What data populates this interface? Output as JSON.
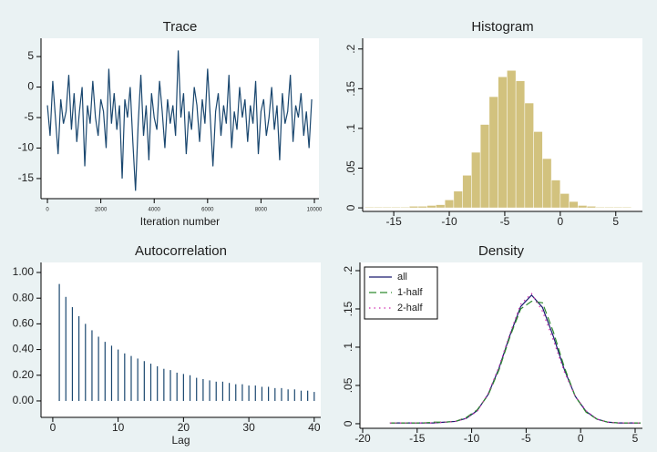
{
  "chart_data": [
    {
      "type": "line",
      "title": "Trace",
      "xlabel": "Iteration number",
      "x": [
        0,
        100,
        200,
        300,
        400,
        500,
        600,
        700,
        800,
        900,
        1000,
        1100,
        1200,
        1300,
        1400,
        1500,
        1600,
        1700,
        1800,
        1900,
        2000,
        2100,
        2200,
        2300,
        2400,
        2500,
        2600,
        2700,
        2800,
        2900,
        3000,
        3100,
        3200,
        3300,
        3400,
        3500,
        3600,
        3700,
        3800,
        3900,
        4000,
        4100,
        4200,
        4300,
        4400,
        4500,
        4600,
        4700,
        4800,
        4900,
        5000,
        5100,
        5200,
        5300,
        5400,
        5500,
        5600,
        5700,
        5800,
        5900,
        6000,
        6100,
        6200,
        6300,
        6400,
        6500,
        6600,
        6700,
        6800,
        6900,
        7000,
        7100,
        7200,
        7300,
        7400,
        7500,
        7600,
        7700,
        7800,
        7900,
        8000,
        8100,
        8200,
        8300,
        8400,
        8500,
        8600,
        8700,
        8800,
        8900,
        9000,
        9100,
        9200,
        9300,
        9400,
        9500,
        9600,
        9700,
        9800,
        9900
      ],
      "series": [
        {
          "color": "#1a476f",
          "line_style": "solid",
          "values": [
            -3,
            -8,
            1,
            -5,
            -11,
            -2,
            -6,
            -4,
            2,
            -7,
            -1,
            -9,
            -4,
            0,
            -13,
            -3,
            -6,
            1,
            -5,
            -8,
            -2,
            -4,
            -10,
            3,
            -6,
            -1,
            -7,
            -3,
            -15,
            -2,
            -5,
            0,
            -9,
            -17,
            -6,
            2,
            -8,
            -3,
            -12,
            -1,
            -5,
            -7,
            1,
            -4,
            -10,
            -2,
            -6,
            -3,
            -8,
            6,
            -5,
            -1,
            -11,
            -4,
            -7,
            0,
            -3,
            -9,
            -2,
            -6,
            3,
            -5,
            -13,
            -4,
            -1,
            -8,
            -3,
            -6,
            2,
            -10,
            -4,
            -7,
            0,
            -5,
            -2,
            -9,
            -3,
            -6,
            1,
            -11,
            -4,
            -2,
            -8,
            -5,
            0,
            -7,
            -3,
            -12,
            -1,
            -6,
            -4,
            2,
            -9,
            -3,
            -5,
            -1,
            -8,
            -4,
            -10,
            -2
          ]
        }
      ],
      "xlim": [
        -240,
        10170
      ],
      "xticks": [
        0,
        2000,
        4000,
        6000,
        8000,
        10000
      ],
      "ylim": [
        -18.3,
        8
      ],
      "yticks": [
        5,
        0,
        -5,
        -10,
        -15
      ]
    },
    {
      "type": "histogram",
      "title": "Histogram",
      "color": "#d2c27e",
      "bins": [
        -17.6,
        -16.8,
        -16,
        -15.2,
        -14.4,
        -13.6,
        -12.8,
        -12,
        -11.2,
        -10.4,
        -9.6,
        -8.8,
        -8,
        -7.2,
        -6.4,
        -5.6,
        -4.8,
        -4,
        -3.2,
        -2.4,
        -1.6,
        -0.8,
        0,
        0.8,
        1.6,
        2.4,
        3.2,
        4,
        4.8,
        5.6,
        6.4
      ],
      "values": [
        0.001,
        0.001,
        0.001,
        0.001,
        0.001,
        0.002,
        0.002,
        0.003,
        0.004,
        0.01,
        0.021,
        0.041,
        0.07,
        0.105,
        0.14,
        0.165,
        0.173,
        0.16,
        0.132,
        0.096,
        0.062,
        0.035,
        0.018,
        0.008,
        0.003,
        0.002,
        0.001,
        0.001,
        0.001,
        0.001
      ],
      "xlim": [
        -17.8,
        7.4
      ],
      "xticks": [
        -15,
        -10,
        -5,
        0,
        5
      ],
      "ylim": [
        -0.0045,
        0.2135
      ],
      "yticks": [
        0,
        {
          "value": 0.05,
          "label": ".05"
        },
        {
          "value": 0.1,
          "label": ".1"
        },
        {
          "value": 0.15,
          "label": ".15"
        },
        {
          "value": 0.2,
          "label": ".2"
        }
      ]
    },
    {
      "type": "spike",
      "title": "Autocorrelation",
      "xlabel": "Lag",
      "color": "#1a476f",
      "x": [
        1,
        2,
        3,
        4,
        5,
        6,
        7,
        8,
        9,
        10,
        11,
        12,
        13,
        14,
        15,
        16,
        17,
        18,
        19,
        20,
        21,
        22,
        23,
        24,
        25,
        26,
        27,
        28,
        29,
        30,
        31,
        32,
        33,
        34,
        35,
        36,
        37,
        38,
        39,
        40
      ],
      "values": [
        0.91,
        0.81,
        0.73,
        0.66,
        0.6,
        0.55,
        0.5,
        0.46,
        0.43,
        0.4,
        0.37,
        0.35,
        0.33,
        0.31,
        0.29,
        0.27,
        0.25,
        0.24,
        0.22,
        0.21,
        0.2,
        0.18,
        0.17,
        0.16,
        0.15,
        0.15,
        0.14,
        0.13,
        0.13,
        0.12,
        0.12,
        0.11,
        0.11,
        0.1,
        0.1,
        0.09,
        0.09,
        0.08,
        0.08,
        0.07
      ],
      "xlim": [
        -1.8,
        41
      ],
      "xticks": [
        0,
        10,
        20,
        30,
        40
      ],
      "ylim": [
        -0.128,
        1.078
      ],
      "yticks": [
        {
          "value": 1,
          "label": "1.00"
        },
        {
          "value": 0.8,
          "label": "0.80"
        },
        {
          "value": 0.6,
          "label": "0.60"
        },
        {
          "value": 0.4,
          "label": "0.40"
        },
        {
          "value": 0.2,
          "label": "0.20"
        },
        {
          "value": 0,
          "label": "0.00"
        }
      ]
    },
    {
      "type": "line",
      "title": "Density",
      "legend": "top-left",
      "x": [
        -17.5,
        -16.5,
        -15.5,
        -14.5,
        -13.5,
        -12.5,
        -11.5,
        -10.5,
        -9.5,
        -8.5,
        -7.5,
        -6.5,
        -5.5,
        -4.5,
        -3.5,
        -2.5,
        -1.5,
        -0.5,
        0.5,
        1.5,
        2.5,
        3.5,
        4.5,
        5.5
      ],
      "series": [
        {
          "name": "all",
          "color": "#1a1a6e",
          "line_style": "solid",
          "values": [
            0.001,
            0.001,
            0.001,
            0.001,
            0.001,
            0.002,
            0.003,
            0.007,
            0.017,
            0.038,
            0.072,
            0.115,
            0.153,
            0.168,
            0.152,
            0.114,
            0.071,
            0.036,
            0.016,
            0.006,
            0.002,
            0.001,
            0.001,
            0.001
          ]
        },
        {
          "name": "1-half",
          "color": "#2e8b2e",
          "line_style": "dashed",
          "values": [
            0.001,
            0.001,
            0.001,
            0.001,
            0.002,
            0.002,
            0.003,
            0.008,
            0.018,
            0.037,
            0.07,
            0.113,
            0.15,
            0.16,
            0.158,
            0.12,
            0.074,
            0.036,
            0.015,
            0.006,
            0.002,
            0.001,
            0.001,
            0.001
          ]
        },
        {
          "name": "2-half",
          "color": "#d12fb0",
          "line_style": "dotted",
          "values": [
            0.001,
            0.001,
            0.001,
            0.001,
            0.001,
            0.002,
            0.003,
            0.007,
            0.016,
            0.039,
            0.074,
            0.117,
            0.156,
            0.17,
            0.147,
            0.109,
            0.068,
            0.036,
            0.017,
            0.006,
            0.002,
            0.001,
            0.001,
            0.001
          ]
        }
      ],
      "xlim": [
        -20.25,
        5.67
      ],
      "xticks": [
        -20,
        -15,
        -10,
        -5,
        0,
        5
      ],
      "ylim": [
        -0.006,
        0.2107
      ],
      "yticks": [
        0,
        {
          "value": 0.05,
          "label": ".05"
        },
        {
          "value": 0.1,
          "label": ".1"
        },
        {
          "value": 0.15,
          "label": ".15"
        },
        {
          "value": 0.2,
          "label": ".2"
        }
      ]
    }
  ]
}
